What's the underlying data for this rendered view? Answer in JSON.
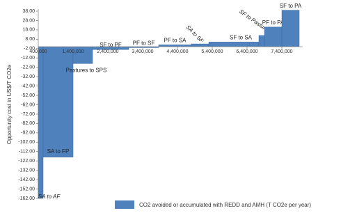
{
  "chart_data": {
    "type": "bar",
    "y_label": "Opportunity cost in US$/T CO2e",
    "legend": "CO2 avoided or accumulated with REDD and AMH (T CO2e per year)",
    "color": "#4f81bd",
    "categories": [
      "SA to AF",
      "SA to FP",
      "Pastures to SPS",
      "SF to PF",
      "PF to SF",
      "PF to SA",
      "SA to SF",
      "SF to SA",
      "SF to Pastures",
      "PF to PA",
      "SF to PA"
    ],
    "bins": [
      400000,
      540000,
      1400000,
      1960000,
      3000000,
      3860000,
      4800000,
      5300000,
      6740000,
      6900000,
      7400000,
      7900000
    ],
    "values": [
      -162,
      -118,
      -18,
      -3,
      -1,
      2,
      3,
      5,
      12,
      21,
      39
    ],
    "xlim": [
      400000,
      8000000
    ],
    "xticks": [
      {
        "value": 400000,
        "label": "400,000"
      },
      {
        "value": 1400000,
        "label": "1,400,000"
      },
      {
        "value": 2400000,
        "label": "2,400,000"
      },
      {
        "value": 3400000,
        "label": "3,400,000"
      },
      {
        "value": 4400000,
        "label": "4,400,000"
      },
      {
        "value": 5400000,
        "label": "5,400,000"
      },
      {
        "value": 6400000,
        "label": "6,400,000"
      },
      {
        "value": 7400000,
        "label": "7,400,000"
      }
    ],
    "ylim": [
      -162,
      40
    ],
    "yticks": [
      {
        "value": 38,
        "label": "38.00"
      },
      {
        "value": 28,
        "label": "28.00"
      },
      {
        "value": 18,
        "label": "18.00"
      },
      {
        "value": 8,
        "label": "8.00"
      },
      {
        "value": -2,
        "label": "-2.00"
      },
      {
        "value": -12,
        "label": "-12.00"
      },
      {
        "value": -22,
        "label": "-22.00"
      },
      {
        "value": -32,
        "label": "-32.00"
      },
      {
        "value": -42,
        "label": "-42.00"
      },
      {
        "value": -52,
        "label": "-52.00"
      },
      {
        "value": -62,
        "label": "-62.00"
      },
      {
        "value": -72,
        "label": "-72.00"
      },
      {
        "value": -82,
        "label": "-82.00"
      },
      {
        "value": -92,
        "label": "-92.00"
      },
      {
        "value": -102,
        "label": "-102.00"
      },
      {
        "value": -112,
        "label": "-112.00"
      },
      {
        "value": -122,
        "label": "-122.00"
      },
      {
        "value": -132,
        "label": "-132.00"
      },
      {
        "value": -142,
        "label": "-142.00"
      },
      {
        "value": -152,
        "label": "-152.00"
      },
      {
        "value": -162,
        "label": "-162.00"
      }
    ]
  }
}
